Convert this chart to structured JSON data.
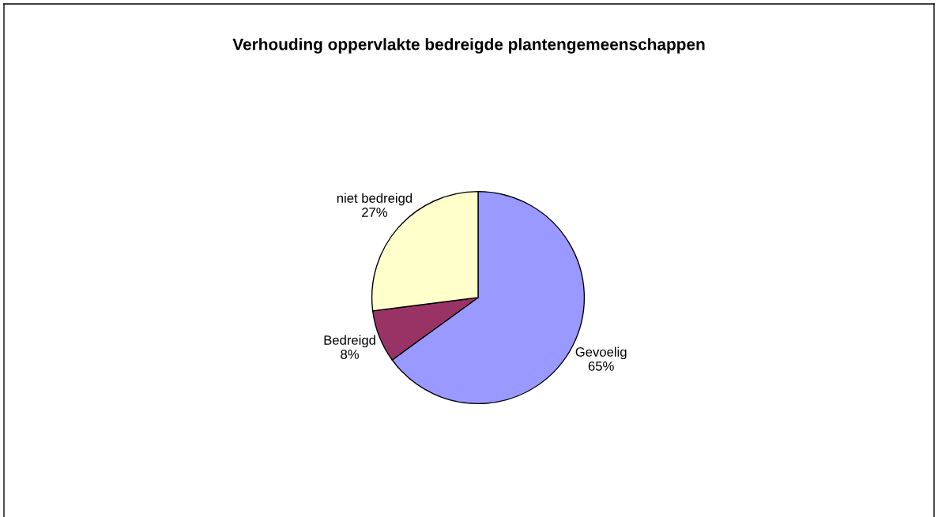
{
  "chart_data": {
    "type": "pie",
    "title": "Verhouding oppervlakte bedreigde plantengemeenschappen",
    "categories": [
      "Gevoelig",
      "Bedreigd",
      "niet bedreigd"
    ],
    "values": [
      65,
      8,
      27
    ],
    "value_labels": [
      "65%",
      "8%",
      "27%"
    ],
    "colors": [
      "#9999ff",
      "#993366",
      "#ffffcc"
    ],
    "legend": false
  }
}
